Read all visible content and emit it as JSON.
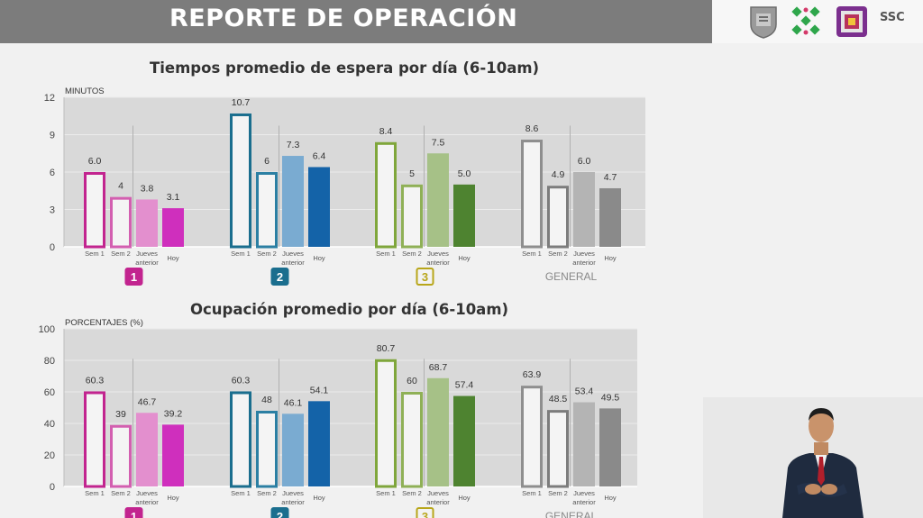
{
  "header": {
    "title": "REPORTE DE OPERACIÓN",
    "brand": "SSC"
  },
  "colors": {
    "line1": [
      "#c2248f",
      "#d35fb0",
      "#e38fce",
      "#cf2fbd"
    ],
    "line2": [
      "#1a6e8e",
      "#2b7fa3",
      "#7aabd1",
      "#1463a8"
    ],
    "line3": [
      "#7fa63b",
      "#8fb056",
      "#a6c187",
      "#4e8330"
    ],
    "general": [
      "#8e8e8e",
      "#7c7c7c",
      "#b4b4b4",
      "#8a8a8a"
    ]
  },
  "chart_data": [
    {
      "type": "bar",
      "title": "Tiempos promedio de espera por día (6-10am)",
      "ylabel": "MINUTOS",
      "ylim": [
        0,
        12
      ],
      "yticks": [
        "0",
        "3",
        "6",
        "9",
        "12"
      ],
      "categories": [
        "Sem 1",
        "Sem 2",
        "Jueves anterior",
        "Hoy"
      ],
      "groups": [
        {
          "name": "1",
          "values": [
            6.0,
            4,
            3.8,
            3.1
          ],
          "labels": [
            "6.0",
            "4",
            "3.8",
            "3.1"
          ]
        },
        {
          "name": "2",
          "values": [
            10.7,
            6,
            7.3,
            6.4
          ],
          "labels": [
            "10.7",
            "6",
            "7.3",
            "6.4"
          ]
        },
        {
          "name": "3",
          "values": [
            8.4,
            5,
            7.5,
            5.0
          ],
          "labels": [
            "8.4",
            "5",
            "7.5",
            "5.0"
          ]
        },
        {
          "name": "GENERAL",
          "values": [
            8.6,
            4.9,
            6.0,
            4.7
          ],
          "labels": [
            "8.6",
            "4.9",
            "6.0",
            "4.7"
          ]
        }
      ]
    },
    {
      "type": "bar",
      "title": "Ocupación promedio por día (6-10am)",
      "ylabel": "PORCENTAJES (%)",
      "ylim": [
        0,
        100
      ],
      "yticks": [
        "0",
        "20",
        "40",
        "60",
        "80",
        "100"
      ],
      "categories": [
        "Sem 1",
        "Sem 2",
        "Jueves anterior",
        "Hoy"
      ],
      "groups": [
        {
          "name": "1",
          "values": [
            60.3,
            39,
            46.7,
            39.2
          ],
          "labels": [
            "60.3",
            "39",
            "46.7",
            "39.2"
          ]
        },
        {
          "name": "2",
          "values": [
            60.3,
            48,
            46.1,
            54.1
          ],
          "labels": [
            "60.3",
            "48",
            "46.1",
            "54.1"
          ]
        },
        {
          "name": "3",
          "values": [
            80.7,
            60,
            68.7,
            57.4
          ],
          "labels": [
            "80.7",
            "60",
            "68.7",
            "57.4"
          ]
        },
        {
          "name": "GENERAL",
          "values": [
            63.9,
            48.5,
            53.4,
            49.5
          ],
          "labels": [
            "63.9",
            "48.5",
            "53.4",
            "49.5"
          ]
        }
      ]
    }
  ]
}
